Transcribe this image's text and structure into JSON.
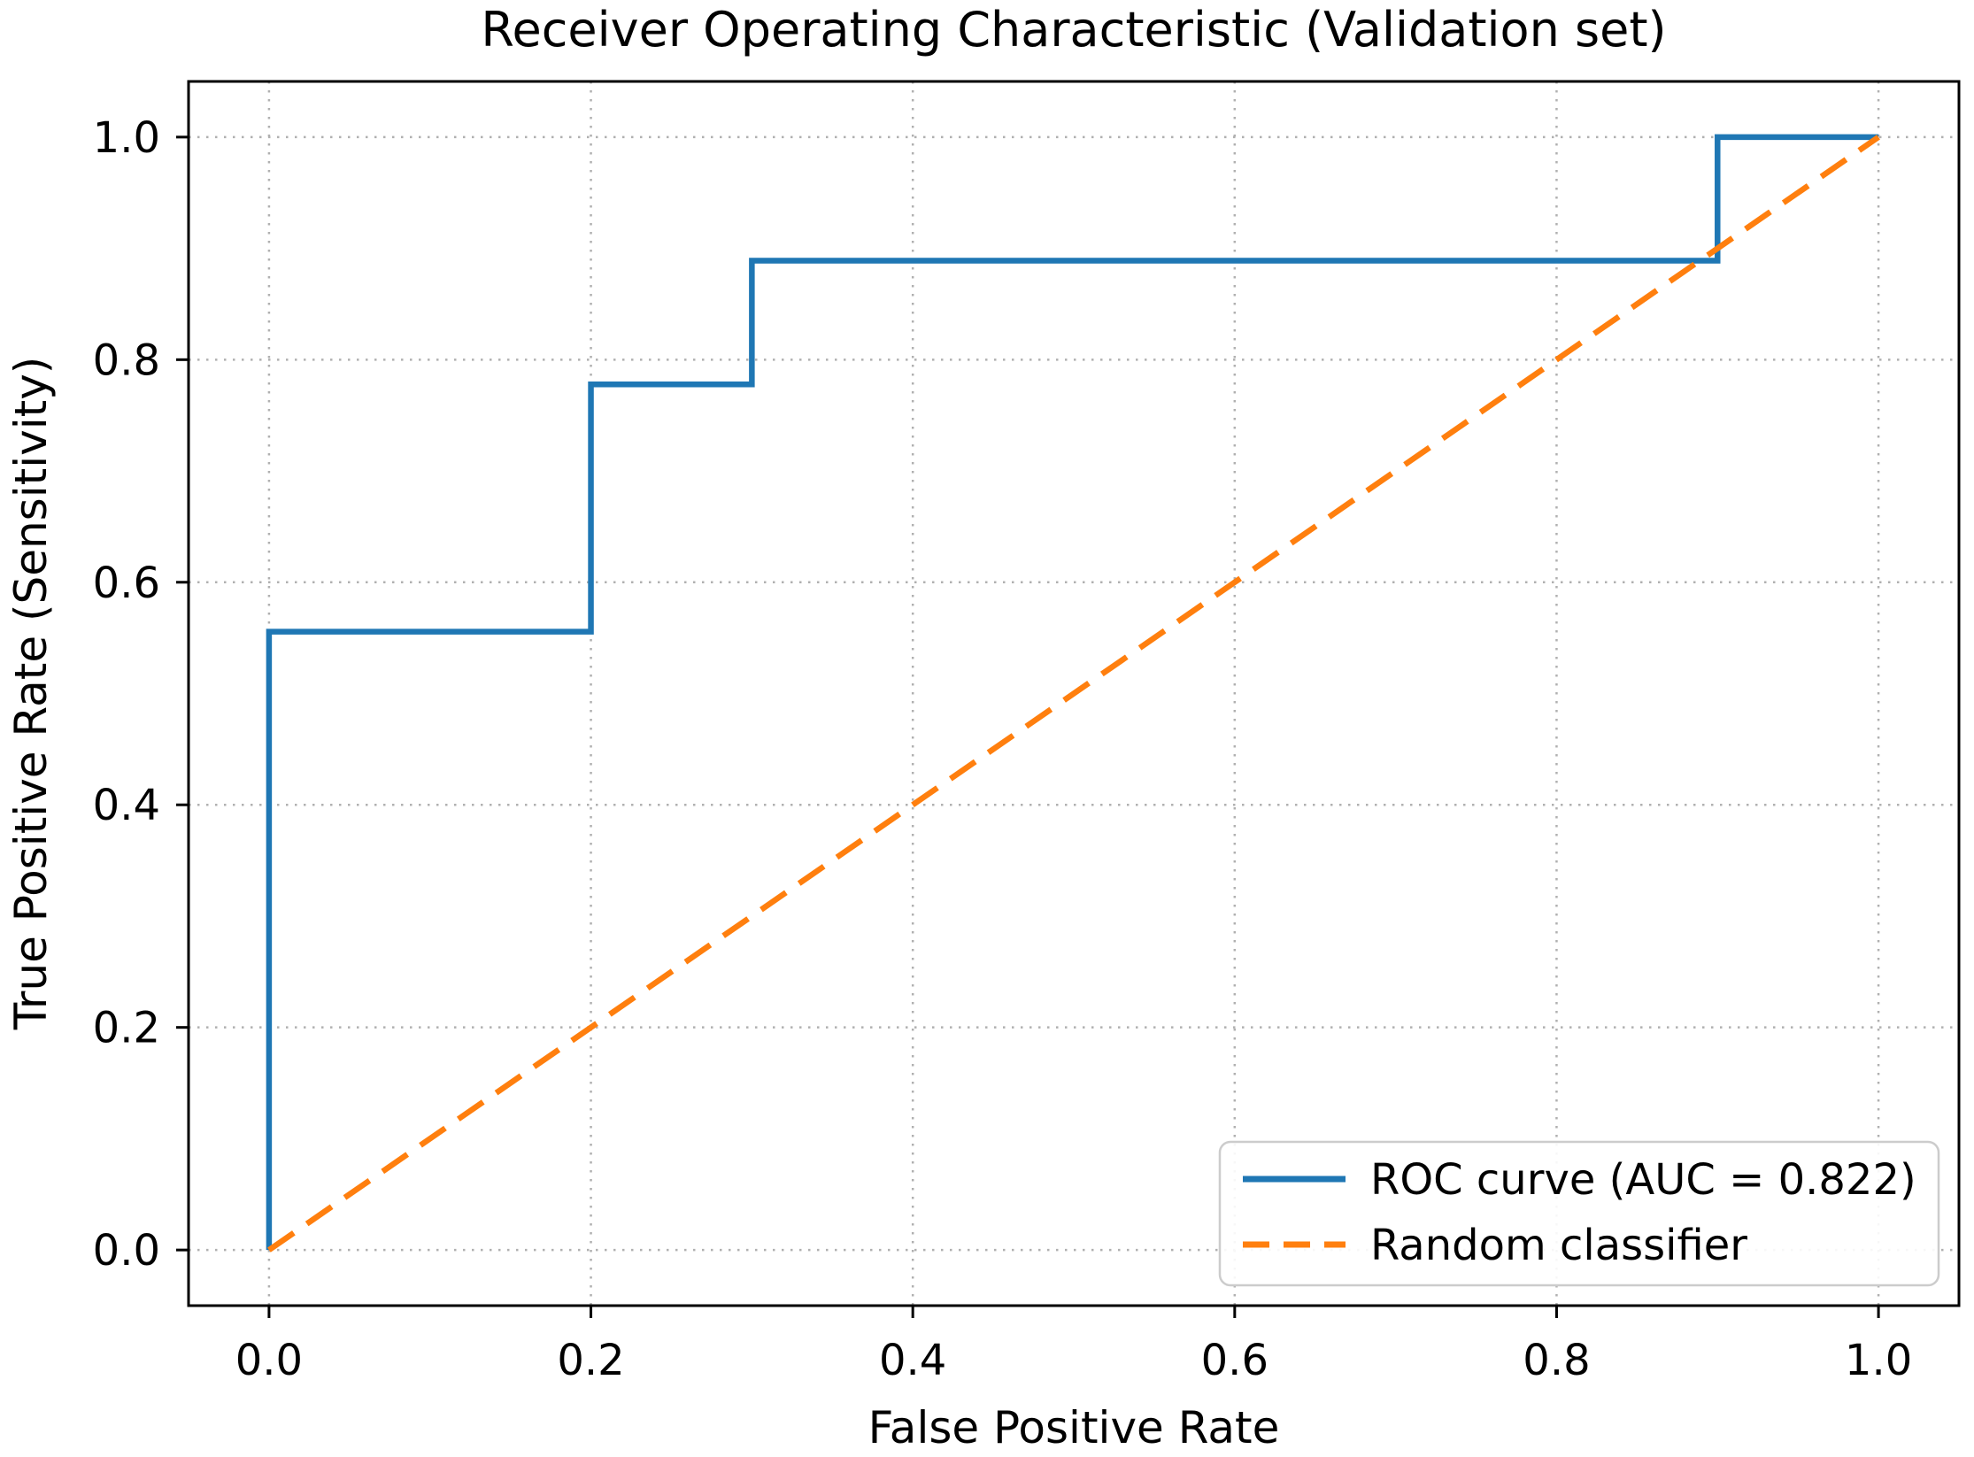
{
  "figure": {
    "title": "Receiver Operating Characteristic (Validation set)"
  },
  "chart_data": {
    "type": "line",
    "title": "Receiver Operating Characteristic (Validation set)",
    "xlabel": "False Positive Rate",
    "ylabel": "True Positive Rate (Sensitivity)",
    "xlim": [
      -0.05,
      1.05
    ],
    "ylim": [
      -0.05,
      1.05
    ],
    "xticks": [
      0.0,
      0.2,
      0.4,
      0.6,
      0.8,
      1.0
    ],
    "yticks": [
      0.0,
      0.2,
      0.4,
      0.6,
      0.8,
      1.0
    ],
    "xtick_labels": [
      "0.0",
      "0.2",
      "0.4",
      "0.6",
      "0.8",
      "1.0"
    ],
    "ytick_labels": [
      "0.0",
      "0.2",
      "0.4",
      "0.6",
      "0.8",
      "1.0"
    ],
    "grid": {
      "visible": true,
      "style": "dotted",
      "color": "#b0b0b0"
    },
    "auc": 0.822,
    "series": [
      {
        "name": "ROC curve (AUC = 0.822)",
        "color": "#1f77b4",
        "style": "solid",
        "line_width": 6.5,
        "x": [
          0.0,
          0.0,
          0.2,
          0.2,
          0.3,
          0.3,
          0.9,
          0.9,
          1.0
        ],
        "y": [
          0.0,
          0.5556,
          0.5556,
          0.7778,
          0.7778,
          0.8889,
          0.8889,
          1.0,
          1.0
        ]
      },
      {
        "name": "Random classifier",
        "color": "#ff7f0e",
        "style": "dashed",
        "line_width": 6.5,
        "x": [
          0.0,
          1.0
        ],
        "y": [
          0.0,
          1.0
        ]
      }
    ],
    "legend": {
      "position": "lower right",
      "entries": [
        {
          "label": "ROC curve (AUC = 0.822)",
          "color": "#1f77b4",
          "style": "solid"
        },
        {
          "label": "Random classifier",
          "color": "#ff7f0e",
          "style": "dashed"
        }
      ]
    }
  }
}
